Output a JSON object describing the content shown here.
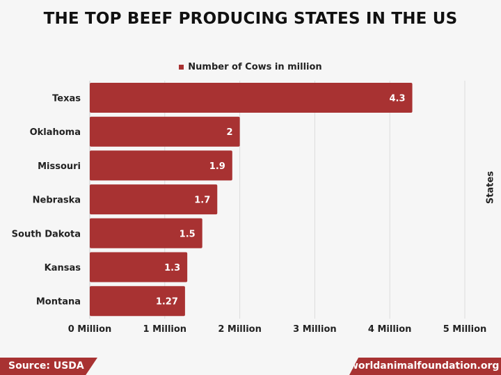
{
  "chart_data": {
    "type": "bar",
    "orientation": "horizontal",
    "title": "THE TOP BEEF PRODUCING STATES IN THE US",
    "legend": "Number of Cows in million",
    "ylabel": "States",
    "xlabel": "",
    "categories": [
      "Texas",
      "Oklahoma",
      "Missouri",
      "Nebraska",
      "South Dakota",
      "Kansas",
      "Montana"
    ],
    "values": [
      4.3,
      2,
      1.9,
      1.7,
      1.5,
      1.3,
      1.27
    ],
    "data_labels": [
      "4.3",
      "2",
      "1.9",
      "1.7",
      "1.5",
      "1.3",
      "1.27"
    ],
    "xticks": [
      0,
      1,
      2,
      3,
      4,
      5
    ],
    "xtick_labels": [
      "0 Million",
      "1 Million",
      "2 Million",
      "3 Million",
      "4 Million",
      "5 Million"
    ],
    "xlim": [
      0,
      5
    ],
    "grid": true,
    "color": "#a83232"
  },
  "footer": {
    "source": "Source: USDA",
    "site": "worldanimalfoundation.org"
  }
}
